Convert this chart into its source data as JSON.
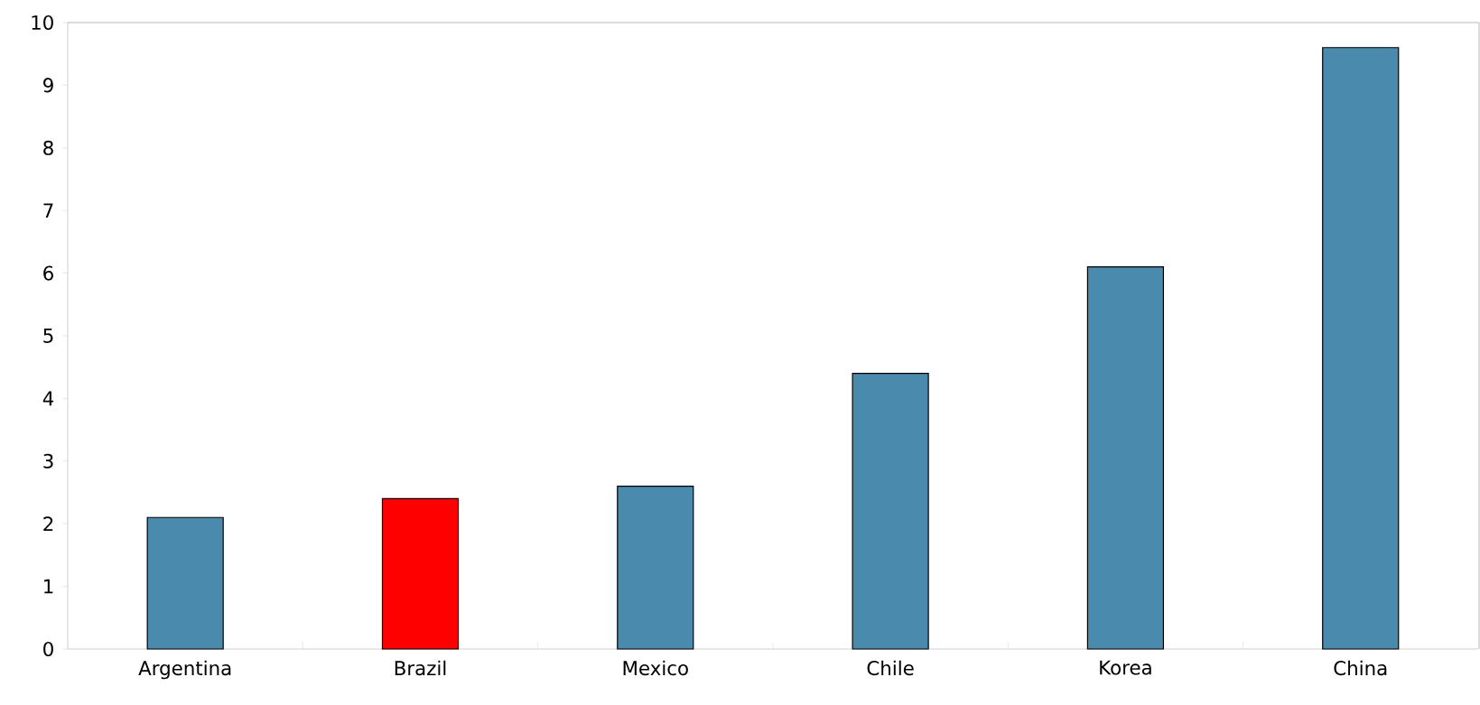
{
  "chart_data": {
    "type": "bar",
    "categories": [
      "Argentina",
      "Brazil",
      "Mexico",
      "Chile",
      "Korea",
      "China"
    ],
    "values": [
      2.1,
      2.4,
      2.6,
      4.4,
      6.1,
      9.6
    ],
    "colors": [
      "#4a8bad",
      "#ff0000",
      "#4a8bad",
      "#4a8bad",
      "#4a8bad",
      "#4a8bad"
    ],
    "ylim": [
      0,
      10
    ],
    "yticks": [
      0,
      1,
      2,
      3,
      4,
      5,
      6,
      7,
      8,
      9,
      10
    ],
    "grid": false
  }
}
